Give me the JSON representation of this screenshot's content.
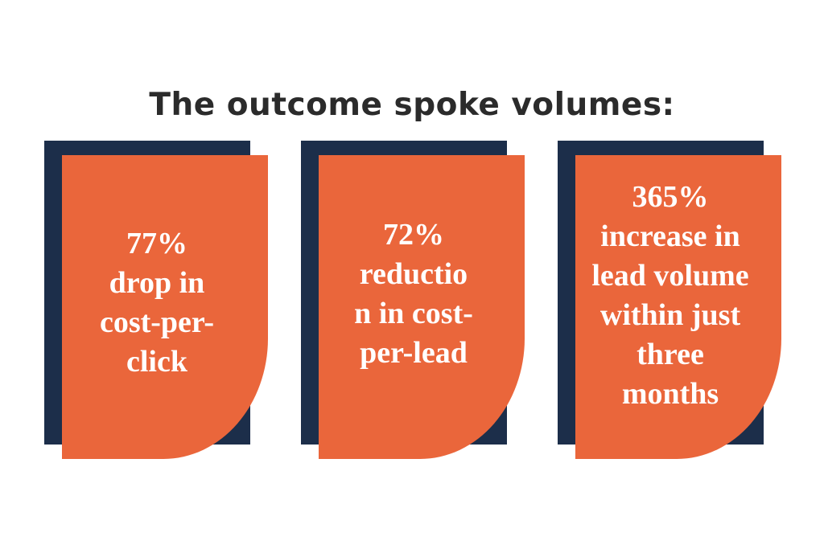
{
  "headline": "The outcome spoke volumes:",
  "colors": {
    "background": "#ffffff",
    "headline_text": "#2b2b2b",
    "card_fill": "#ea663b",
    "card_shadow": "#1c2e4a",
    "card_text": "#ffffff"
  },
  "stats": [
    {
      "text": "77%\ndrop in\ncost-per-\nclick"
    },
    {
      "text": "72%\nreductio\nn in cost-\nper-lead"
    },
    {
      "text": "365%\nincrease in\nlead volume\nwithin just\nthree\nmonths"
    }
  ]
}
